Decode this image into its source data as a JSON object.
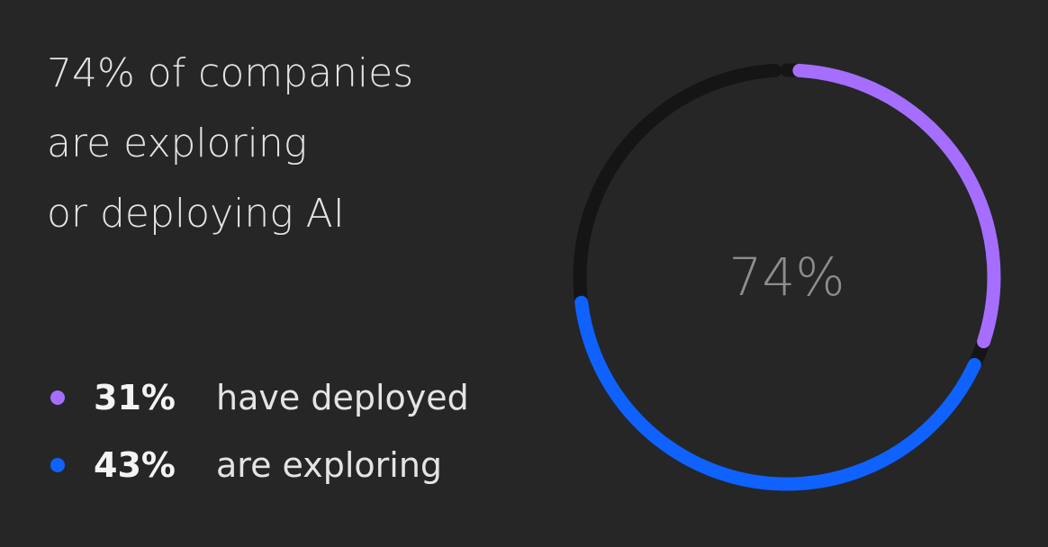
{
  "chart_data": {
    "type": "donut",
    "title": [
      "74% of companies",
      "are exploring",
      "or deploying AI"
    ],
    "center_text": "74%",
    "categories": [
      "have deployed",
      "are exploring"
    ],
    "values": [
      31,
      43
    ],
    "value_labels": [
      "31%",
      "43%"
    ],
    "colors": [
      "#a56eff",
      "#0f62fe"
    ],
    "track_color": "#151515"
  }
}
